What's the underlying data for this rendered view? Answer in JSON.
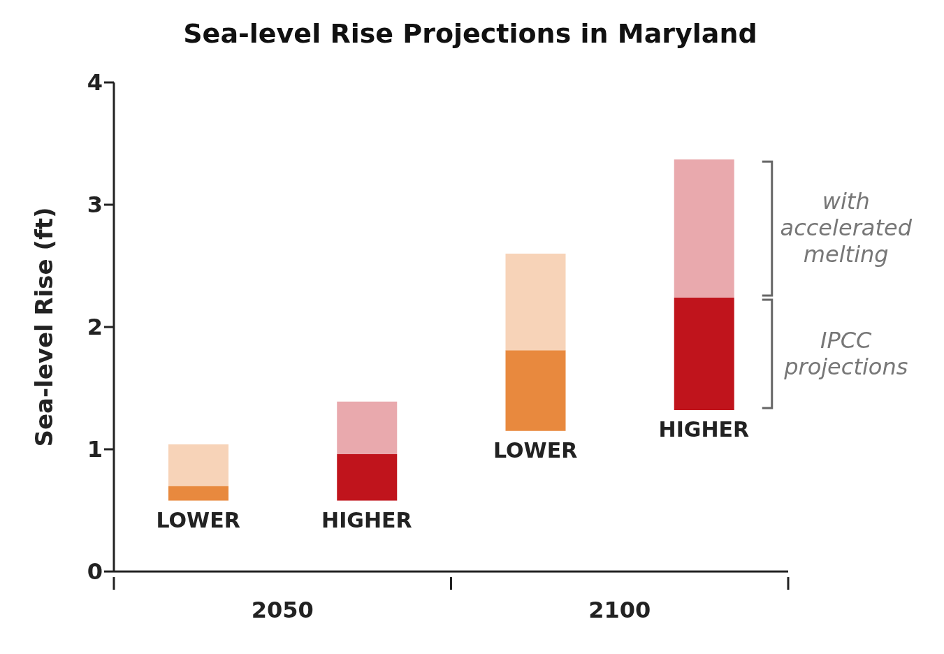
{
  "chart_data": {
    "type": "bar",
    "title": "Sea-level Rise Projections in Maryland",
    "ylabel": "Sea-level Rise (ft)",
    "categories": [
      "LOWER",
      "HIGHER",
      "LOWER",
      "HIGHER"
    ],
    "series": [
      {
        "name": "IPCC projections",
        "colors": [
          "#e8893e",
          "#c0141c",
          "#e8893e",
          "#c0141c"
        ],
        "base": [
          0.58,
          0.58,
          1.15,
          1.32
        ],
        "values": [
          0.12,
          0.38,
          0.66,
          0.92
        ]
      },
      {
        "name": "with accelerated melting",
        "colors": [
          "#f7d3b8",
          "#e9a9ad",
          "#f7d3b8",
          "#e9a9ad"
        ],
        "base": [
          0.7,
          0.96,
          1.81,
          2.24
        ],
        "values": [
          0.34,
          0.43,
          0.79,
          1.13
        ]
      }
    ],
    "annotations": [
      "2050",
      "2100"
    ],
    "ylim": [
      0,
      4
    ],
    "yticks": [
      0,
      1,
      2,
      3,
      4
    ]
  }
}
